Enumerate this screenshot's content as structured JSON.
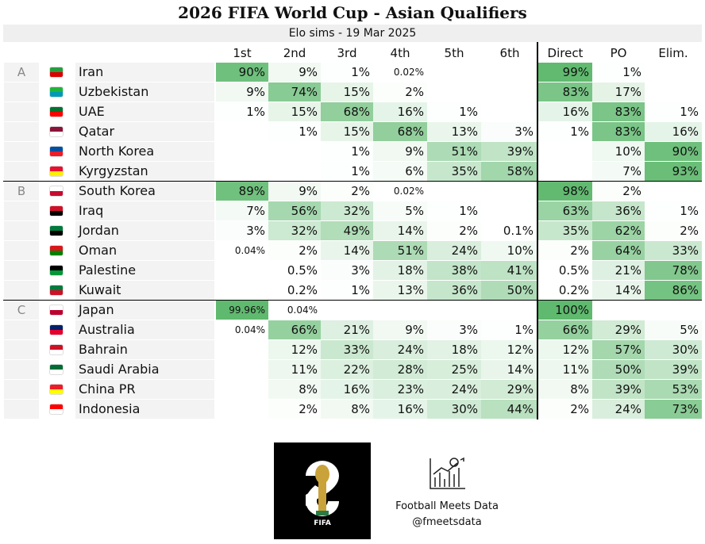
{
  "header": {
    "title": "2026 FIFA World Cup - Asian Qualifiers",
    "subtitle": "Elo sims - 19 Mar 2025"
  },
  "table": {
    "columns": [
      "1st",
      "2nd",
      "3rd",
      "4th",
      "5th",
      "6th",
      "Direct",
      "PO",
      "Elim."
    ],
    "groups": [
      {
        "label": "A",
        "rows": [
          {
            "team": "Iran",
            "cells": [
              "90%",
              "9%",
              "1%",
              "0.02%",
              null,
              null,
              "99%",
              "1%",
              null
            ]
          },
          {
            "team": "Uzbekistan",
            "cells": [
              "9%",
              "74%",
              "15%",
              "2%",
              null,
              null,
              "83%",
              "17%",
              null
            ]
          },
          {
            "team": "UAE",
            "cells": [
              "1%",
              "15%",
              "68%",
              "16%",
              "1%",
              null,
              "16%",
              "83%",
              "1%"
            ]
          },
          {
            "team": "Qatar",
            "cells": [
              null,
              "1%",
              "15%",
              "68%",
              "13%",
              "3%",
              "1%",
              "83%",
              "16%"
            ]
          },
          {
            "team": "North Korea",
            "cells": [
              null,
              null,
              "1%",
              "9%",
              "51%",
              "39%",
              null,
              "10%",
              "90%"
            ]
          },
          {
            "team": "Kyrgyzstan",
            "cells": [
              null,
              null,
              "1%",
              "6%",
              "35%",
              "58%",
              null,
              "7%",
              "93%"
            ]
          }
        ]
      },
      {
        "label": "B",
        "rows": [
          {
            "team": "South Korea",
            "cells": [
              "89%",
              "9%",
              "2%",
              "0.02%",
              null,
              null,
              "98%",
              "2%",
              null
            ]
          },
          {
            "team": "Iraq",
            "cells": [
              "7%",
              "56%",
              "32%",
              "5%",
              "1%",
              null,
              "63%",
              "36%",
              "1%"
            ]
          },
          {
            "team": "Jordan",
            "cells": [
              "3%",
              "32%",
              "49%",
              "14%",
              "2%",
              "0.1%",
              "35%",
              "62%",
              "2%"
            ]
          },
          {
            "team": "Oman",
            "cells": [
              "0.04%",
              "2%",
              "14%",
              "51%",
              "24%",
              "10%",
              "2%",
              "64%",
              "33%"
            ]
          },
          {
            "team": "Palestine",
            "cells": [
              null,
              "0.5%",
              "3%",
              "18%",
              "38%",
              "41%",
              "0.5%",
              "21%",
              "78%"
            ]
          },
          {
            "team": "Kuwait",
            "cells": [
              null,
              "0.2%",
              "1%",
              "13%",
              "36%",
              "50%",
              "0.2%",
              "14%",
              "86%"
            ]
          }
        ]
      },
      {
        "label": "C",
        "rows": [
          {
            "team": "Japan",
            "cells": [
              "99.96%",
              "0.04%",
              null,
              null,
              null,
              null,
              "100%",
              null,
              null
            ]
          },
          {
            "team": "Australia",
            "cells": [
              "0.04%",
              "66%",
              "21%",
              "9%",
              "3%",
              "1%",
              "66%",
              "29%",
              "5%"
            ]
          },
          {
            "team": "Bahrain",
            "cells": [
              null,
              "12%",
              "33%",
              "24%",
              "18%",
              "12%",
              "12%",
              "57%",
              "30%"
            ]
          },
          {
            "team": "Saudi Arabia",
            "cells": [
              null,
              "11%",
              "22%",
              "28%",
              "25%",
              "14%",
              "11%",
              "50%",
              "39%"
            ]
          },
          {
            "team": "China PR",
            "cells": [
              null,
              "8%",
              "16%",
              "23%",
              "24%",
              "29%",
              "8%",
              "39%",
              "53%"
            ]
          },
          {
            "team": "Indonesia",
            "cells": [
              null,
              "2%",
              "8%",
              "16%",
              "30%",
              "44%",
              "2%",
              "24%",
              "73%"
            ]
          }
        ]
      }
    ]
  },
  "footer": {
    "logo_text": "FIFA",
    "brand": "Football Meets Data",
    "handle": "@fmeetsdata"
  }
}
